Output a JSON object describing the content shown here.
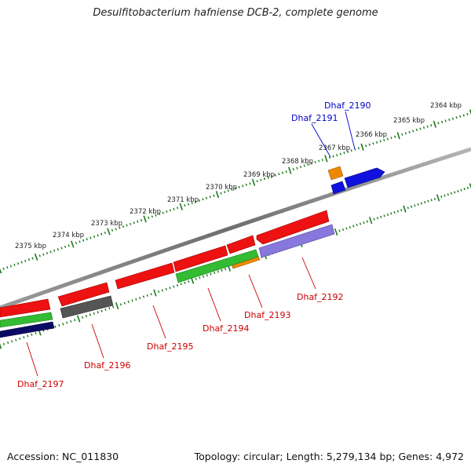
{
  "title": "Desulfitobacterium hafniense DCB-2, complete genome",
  "footer": {
    "accession": "Accession: NC_011830",
    "stats": "Topology: circular; Length: 5,279,134 bp; Genes: 4,972"
  },
  "scale": {
    "tick_labels": [
      "2364 kbp",
      "2365 kbp",
      "2366 kbp",
      "2367 kbp",
      "2368 kbp",
      "2369 kbp",
      "2370 kbp",
      "2371 kbp",
      "2372 kbp",
      "2373 kbp",
      "2374 kbp",
      "2375 kbp"
    ]
  },
  "colors": {
    "backbone": "#808080",
    "tick": "#1a7a1a",
    "label_forward": "#0000cc",
    "label_reverse": "#cc0000",
    "red_cds": "#ee1111",
    "gray_cds": "#555555",
    "green_cds": "#33bb33",
    "orange_cds": "#ee8800",
    "purple_cds": "#8877dd",
    "blue_cds": "#1111dd",
    "navy_cds": "#0a0a66"
  },
  "gene_labels": [
    {
      "text": "Dhaf_2190",
      "strand": "forward"
    },
    {
      "text": "Dhaf_2191",
      "strand": "forward"
    },
    {
      "text": "Dhaf_2192",
      "strand": "reverse"
    },
    {
      "text": "Dhaf_2193",
      "strand": "reverse"
    },
    {
      "text": "Dhaf_2194",
      "strand": "reverse"
    },
    {
      "text": "Dhaf_2195",
      "strand": "reverse"
    },
    {
      "text": "Dhaf_2196",
      "strand": "reverse"
    },
    {
      "text": "Dhaf_2197",
      "strand": "reverse"
    }
  ]
}
